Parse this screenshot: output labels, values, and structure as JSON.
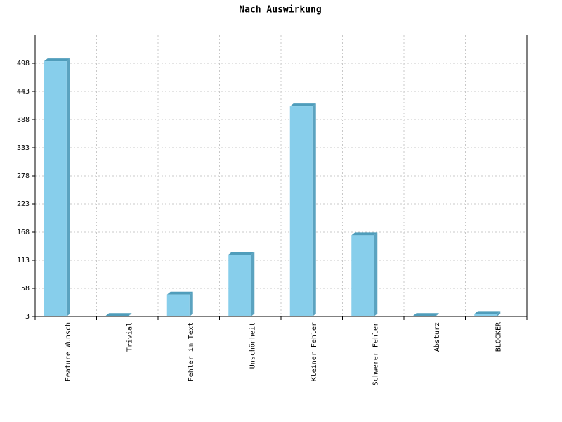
{
  "chart_data": {
    "type": "bar",
    "title": "Nach Auswirkung",
    "categories": [
      "Feature Wunsch",
      "Trivial",
      "Fehler im Text",
      "Unschönheit",
      "Kleiner Fehler",
      "Schwerer Fehler",
      "Absturz",
      "BLOCKER"
    ],
    "values": [
      502,
      4,
      46,
      124,
      414,
      162,
      4,
      8
    ],
    "color": "#87ceeb",
    "ylim": [
      3,
      553
    ],
    "yticks": [
      3,
      58,
      113,
      168,
      223,
      278,
      333,
      388,
      443,
      498
    ],
    "grid": true
  }
}
